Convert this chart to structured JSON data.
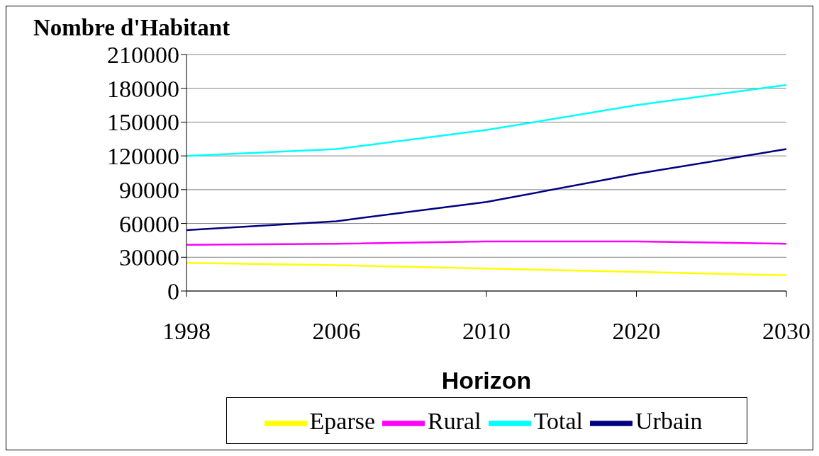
{
  "chart_data": {
    "type": "line",
    "ylabel": "Nombre d'Habitant",
    "xlabel": "Horizon",
    "categories": [
      "1998",
      "2006",
      "2010",
      "2020",
      "2030"
    ],
    "series": [
      {
        "name": "Urbain",
        "color": "#000080",
        "values": [
          54000,
          62000,
          79000,
          104000,
          126000
        ]
      },
      {
        "name": "Rural",
        "color": "#ff00ff",
        "values": [
          41000,
          42000,
          44000,
          44000,
          42000
        ]
      },
      {
        "name": "Eparse",
        "color": "#ffff00",
        "values": [
          25000,
          23000,
          20000,
          17000,
          14000
        ]
      },
      {
        "name": "Total",
        "color": "#00ffff",
        "values": [
          120000,
          126000,
          143000,
          165000,
          183000
        ]
      }
    ],
    "ylim": [
      0,
      210000
    ],
    "yticks": [
      0,
      30000,
      60000,
      90000,
      120000,
      150000,
      180000,
      210000
    ],
    "grid": "y",
    "legend": "bottom",
    "marker": "none",
    "line_style": "solid"
  }
}
